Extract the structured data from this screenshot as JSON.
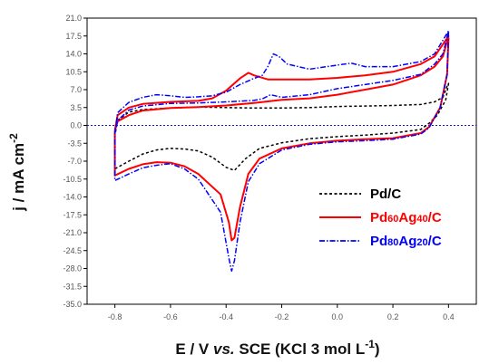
{
  "chart_data": {
    "type": "line",
    "xlabel": "E / V vs. SCE (KCl 3 mol L⁻¹)",
    "ylabel": "j / mA cm⁻²",
    "xlim": [
      -0.9,
      0.5
    ],
    "ylim": [
      -35.0,
      21.0
    ],
    "x_ticks": [
      -0.8,
      -0.6,
      -0.4,
      -0.2,
      0.0,
      0.2,
      0.4
    ],
    "x_tick_labels": [
      "-0.8",
      "-0.6",
      "-0.4",
      "-0.2",
      "0.0",
      "0.2",
      "0.4"
    ],
    "y_ticks": [
      21.0,
      17.5,
      14.0,
      10.5,
      7.0,
      3.5,
      0.0,
      -3.5,
      -7.0,
      -10.5,
      -14.0,
      -17.5,
      -21.0,
      -24.5,
      -28.0,
      -31.5,
      -35.0
    ],
    "y_tick_labels": [
      "21.0",
      "17.5",
      "14.0",
      "10.5",
      "7.0",
      "3.5",
      "0.0",
      "-3.5",
      "-7.0",
      "-10.5",
      "-14.0",
      "-17.5",
      "-21.0",
      "-24.5",
      "-28.0",
      "-31.5",
      "-35.0"
    ],
    "zero_line": true,
    "grid": false,
    "legend_position": "lower-right",
    "series": [
      {
        "name": "Pd/C",
        "legend_parts": [
          {
            "t": "Pd/C",
            "sub": false
          }
        ],
        "color": "#000000",
        "style": "dashed",
        "loops": [
          [
            [
              -0.79,
              1.0
            ],
            [
              -0.75,
              2.6
            ],
            [
              -0.7,
              3.1
            ],
            [
              -0.6,
              3.4
            ],
            [
              -0.5,
              3.6
            ],
            [
              -0.4,
              3.5
            ],
            [
              -0.3,
              3.4
            ],
            [
              -0.2,
              3.4
            ],
            [
              -0.1,
              3.5
            ],
            [
              0.0,
              3.7
            ],
            [
              0.1,
              3.8
            ],
            [
              0.2,
              3.9
            ],
            [
              0.3,
              4.1
            ],
            [
              0.35,
              4.6
            ],
            [
              0.38,
              5.5
            ],
            [
              0.395,
              7.7
            ],
            [
              0.4,
              8.2
            ],
            [
              0.39,
              5.0
            ],
            [
              0.36,
              2.0
            ],
            [
              0.33,
              0.4
            ],
            [
              0.3,
              -0.8
            ],
            [
              0.2,
              -1.5
            ],
            [
              0.1,
              -1.9
            ],
            [
              0.0,
              -2.2
            ],
            [
              -0.1,
              -2.6
            ],
            [
              -0.2,
              -3.4
            ],
            [
              -0.28,
              -4.5
            ],
            [
              -0.33,
              -6.5
            ],
            [
              -0.37,
              -8.8
            ],
            [
              -0.4,
              -8.2
            ],
            [
              -0.45,
              -6.2
            ],
            [
              -0.5,
              -5.0
            ],
            [
              -0.55,
              -4.6
            ],
            [
              -0.6,
              -4.5
            ],
            [
              -0.65,
              -4.8
            ],
            [
              -0.7,
              -5.6
            ],
            [
              -0.75,
              -7.0
            ],
            [
              -0.8,
              -8.5
            ],
            [
              -0.8,
              -6.0
            ],
            [
              -0.8,
              -2.0
            ],
            [
              -0.79,
              1.0
            ]
          ]
        ]
      },
      {
        "name": "Pd60Ag40/C",
        "legend_parts": [
          {
            "t": "Pd",
            "sub": false
          },
          {
            "t": "60",
            "sub": true
          },
          {
            "t": "Ag",
            "sub": false
          },
          {
            "t": "40",
            "sub": true
          },
          {
            "t": "/C",
            "sub": false
          }
        ],
        "color": "#ff0000",
        "style": "solid",
        "loops": [
          [
            [
              -0.8,
              -1.0
            ],
            [
              -0.79,
              2.0
            ],
            [
              -0.75,
              3.5
            ],
            [
              -0.7,
              4.2
            ],
            [
              -0.6,
              4.6
            ],
            [
              -0.5,
              4.8
            ],
            [
              -0.45,
              5.3
            ],
            [
              -0.4,
              6.8
            ],
            [
              -0.35,
              9.2
            ],
            [
              -0.32,
              10.3
            ],
            [
              -0.3,
              9.8
            ],
            [
              -0.25,
              9.0
            ],
            [
              -0.2,
              9.0
            ],
            [
              -0.1,
              9.0
            ],
            [
              0.0,
              9.3
            ],
            [
              0.1,
              9.8
            ],
            [
              0.2,
              10.5
            ],
            [
              0.3,
              12.0
            ],
            [
              0.35,
              13.5
            ],
            [
              0.4,
              17.5
            ],
            [
              0.38,
              13.5
            ],
            [
              0.35,
              11.5
            ],
            [
              0.3,
              9.8
            ],
            [
              0.2,
              8.0
            ],
            [
              0.1,
              7.0
            ],
            [
              0.0,
              6.0
            ],
            [
              -0.1,
              5.3
            ],
            [
              -0.2,
              5.0
            ],
            [
              -0.3,
              4.4
            ],
            [
              -0.4,
              3.9
            ],
            [
              -0.5,
              3.6
            ],
            [
              -0.6,
              3.4
            ],
            [
              -0.7,
              2.9
            ],
            [
              -0.75,
              2.0
            ],
            [
              -0.79,
              0.8
            ],
            [
              -0.8,
              -1.0
            ]
          ],
          [
            [
              0.4,
              17.2
            ],
            [
              0.395,
              10.0
            ],
            [
              0.37,
              3.5
            ],
            [
              0.33,
              -0.3
            ],
            [
              0.3,
              -1.5
            ],
            [
              0.2,
              -2.5
            ],
            [
              0.1,
              -2.7
            ],
            [
              0.0,
              -3.0
            ],
            [
              -0.1,
              -3.5
            ],
            [
              -0.2,
              -4.5
            ],
            [
              -0.28,
              -6.5
            ],
            [
              -0.32,
              -9.5
            ],
            [
              -0.35,
              -16.0
            ],
            [
              -0.37,
              -22.0
            ],
            [
              -0.38,
              -22.5
            ],
            [
              -0.39,
              -19.0
            ],
            [
              -0.42,
              -13.5
            ],
            [
              -0.5,
              -9.5
            ],
            [
              -0.55,
              -8.0
            ],
            [
              -0.6,
              -7.3
            ],
            [
              -0.65,
              -7.2
            ],
            [
              -0.7,
              -7.6
            ],
            [
              -0.75,
              -8.5
            ],
            [
              -0.8,
              -9.8
            ],
            [
              -0.8,
              -6.0
            ],
            [
              -0.8,
              -1.0
            ]
          ]
        ]
      },
      {
        "name": "Pd80Ag20/C",
        "legend_parts": [
          {
            "t": "Pd",
            "sub": false
          },
          {
            "t": "80",
            "sub": true
          },
          {
            "t": "Ag",
            "sub": false
          },
          {
            "t": "20",
            "sub": true
          },
          {
            "t": "/C",
            "sub": false
          }
        ],
        "color": "#0000ff",
        "style": "dashdot",
        "loops": [
          [
            [
              -0.8,
              -1.5
            ],
            [
              -0.79,
              2.5
            ],
            [
              -0.75,
              4.5
            ],
            [
              -0.7,
              5.5
            ],
            [
              -0.65,
              6.0
            ],
            [
              -0.6,
              5.8
            ],
            [
              -0.55,
              5.5
            ],
            [
              -0.5,
              5.6
            ],
            [
              -0.45,
              5.8
            ],
            [
              -0.4,
              6.5
            ],
            [
              -0.35,
              8.0
            ],
            [
              -0.3,
              9.2
            ],
            [
              -0.27,
              9.8
            ],
            [
              -0.25,
              11.5
            ],
            [
              -0.23,
              14.0
            ],
            [
              -0.21,
              13.5
            ],
            [
              -0.18,
              12.0
            ],
            [
              -0.1,
              11.0
            ],
            [
              0.0,
              11.8
            ],
            [
              0.05,
              12.2
            ],
            [
              0.1,
              11.5
            ],
            [
              0.2,
              11.5
            ],
            [
              0.3,
              12.5
            ],
            [
              0.35,
              14.0
            ],
            [
              0.4,
              18.5
            ],
            [
              0.38,
              14.0
            ],
            [
              0.35,
              12.0
            ],
            [
              0.3,
              10.0
            ],
            [
              0.2,
              8.8
            ],
            [
              0.1,
              8.0
            ],
            [
              0.0,
              7.2
            ],
            [
              -0.1,
              6.0
            ],
            [
              -0.2,
              5.5
            ],
            [
              -0.24,
              6.0
            ],
            [
              -0.27,
              5.2
            ],
            [
              -0.3,
              4.9
            ],
            [
              -0.4,
              4.6
            ],
            [
              -0.5,
              4.4
            ],
            [
              -0.6,
              4.3
            ],
            [
              -0.7,
              3.8
            ],
            [
              -0.75,
              3.0
            ],
            [
              -0.79,
              1.0
            ],
            [
              -0.8,
              -1.5
            ]
          ],
          [
            [
              0.4,
              18.3
            ],
            [
              0.395,
              10.0
            ],
            [
              0.37,
              3.5
            ],
            [
              0.33,
              -0.5
            ],
            [
              0.3,
              -1.7
            ],
            [
              0.2,
              -2.7
            ],
            [
              0.1,
              -3.0
            ],
            [
              0.0,
              -3.2
            ],
            [
              -0.1,
              -3.7
            ],
            [
              -0.2,
              -4.8
            ],
            [
              -0.28,
              -7.5
            ],
            [
              -0.32,
              -11.0
            ],
            [
              -0.35,
              -19.0
            ],
            [
              -0.37,
              -26.5
            ],
            [
              -0.38,
              -28.5
            ],
            [
              -0.39,
              -26.0
            ],
            [
              -0.42,
              -17.0
            ],
            [
              -0.5,
              -10.5
            ],
            [
              -0.55,
              -8.5
            ],
            [
              -0.6,
              -7.5
            ],
            [
              -0.65,
              -7.8
            ],
            [
              -0.7,
              -8.3
            ],
            [
              -0.75,
              -9.5
            ],
            [
              -0.8,
              -10.8
            ],
            [
              -0.8,
              -6.0
            ],
            [
              -0.8,
              -1.5
            ]
          ]
        ]
      }
    ]
  }
}
